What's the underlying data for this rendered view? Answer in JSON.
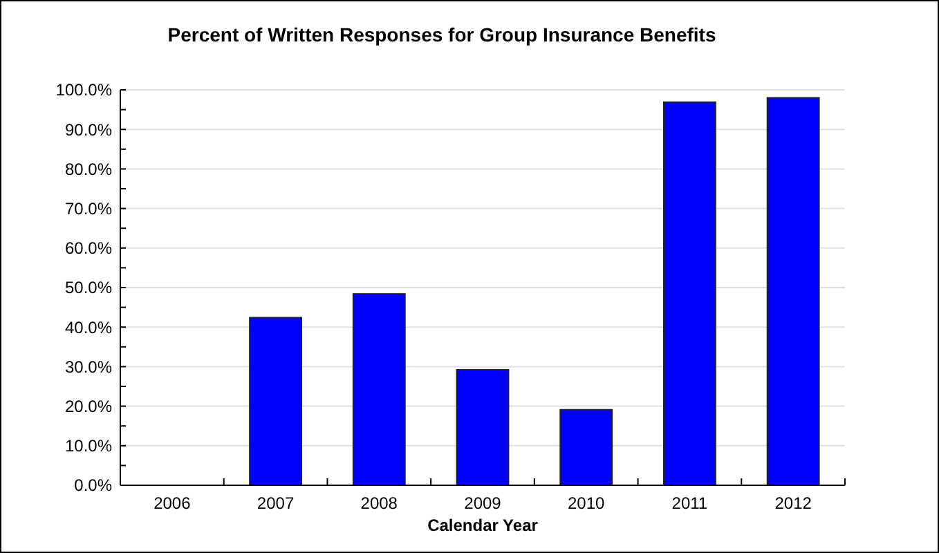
{
  "chart_data": {
    "type": "bar",
    "title": "Percent of Written Responses for Group Insurance Benefits",
    "xlabel": "Calendar Year",
    "categories": [
      "2006",
      "2007",
      "2008",
      "2009",
      "2010",
      "2011",
      "2012"
    ],
    "values": [
      0,
      42.4,
      48.4,
      29.2,
      19.1,
      96.9,
      98.0
    ],
    "color": "#0000ff",
    "ylim": [
      0,
      100
    ],
    "yticks": [
      {
        "value": 0,
        "label": "0.0%"
      },
      {
        "value": 5,
        "label": null
      },
      {
        "value": 10,
        "label": "10.0%"
      },
      {
        "value": 15,
        "label": null
      },
      {
        "value": 20,
        "label": "20.0%"
      },
      {
        "value": 25,
        "label": null
      },
      {
        "value": 30,
        "label": "30.0%"
      },
      {
        "value": 35,
        "label": null
      },
      {
        "value": 40,
        "label": "40.0%"
      },
      {
        "value": 45,
        "label": null
      },
      {
        "value": 50,
        "label": "50.0%"
      },
      {
        "value": 55,
        "label": null
      },
      {
        "value": 60,
        "label": "60.0%"
      },
      {
        "value": 65,
        "label": null
      },
      {
        "value": 70,
        "label": "70.0%"
      },
      {
        "value": 75,
        "label": null
      },
      {
        "value": 80,
        "label": "80.0%"
      },
      {
        "value": 85,
        "label": null
      },
      {
        "value": 90,
        "label": "90.0%"
      },
      {
        "value": 95,
        "label": null
      },
      {
        "value": 100,
        "label": "100.0%"
      }
    ],
    "grid": "y"
  }
}
